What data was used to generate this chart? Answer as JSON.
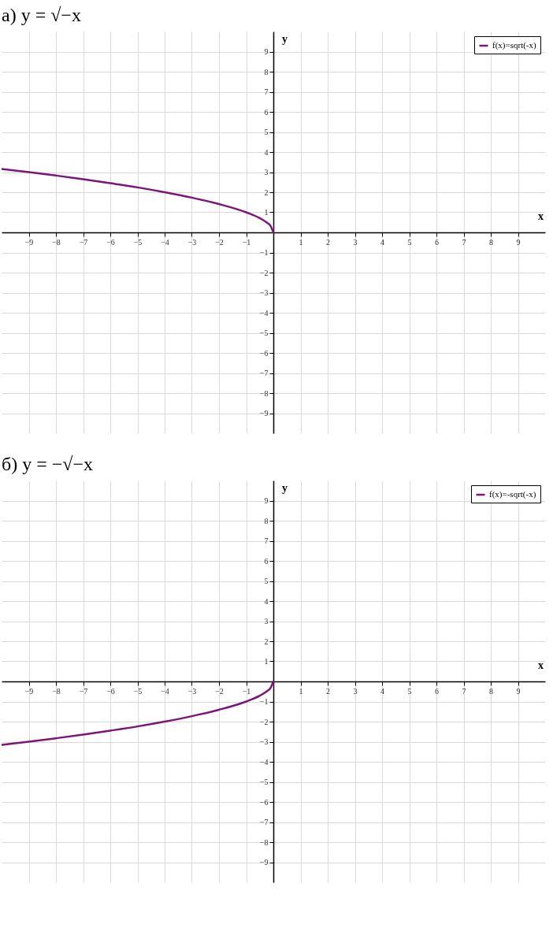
{
  "chart_data": [
    {
      "type": "line",
      "title": "а) y = √−x",
      "xlabel": "x",
      "ylabel": "y",
      "x": [
        -10,
        -9,
        -8,
        -7,
        -6,
        -5,
        -4,
        -3,
        -2,
        -1,
        -0.5,
        -0.25,
        -0.1,
        0
      ],
      "series": [
        {
          "name": "f(x)=sqrt(-x)",
          "color": "#7d1479",
          "values": [
            3.16,
            3,
            2.83,
            2.65,
            2.45,
            2.24,
            2,
            1.73,
            1.41,
            1,
            0.71,
            0.5,
            0.32,
            0
          ]
        }
      ],
      "xlim": [
        -10,
        10
      ],
      "ylim": [
        -10,
        10
      ],
      "xticks": [
        -9,
        -8,
        -7,
        -6,
        -5,
        -4,
        -3,
        -2,
        -1,
        1,
        2,
        3,
        4,
        5,
        6,
        7,
        8,
        9
      ],
      "yticks": [
        -9,
        -8,
        -7,
        -6,
        -5,
        -4,
        -3,
        -2,
        -1,
        1,
        2,
        3,
        4,
        5,
        6,
        7,
        8,
        9
      ],
      "grid": true,
      "legend": "top right"
    },
    {
      "type": "line",
      "title": "б) y = −√−x",
      "xlabel": "x",
      "ylabel": "y",
      "x": [
        -10,
        -9,
        -8,
        -7,
        -6,
        -5,
        -4,
        -3,
        -2,
        -1,
        -0.5,
        -0.25,
        -0.1,
        0
      ],
      "series": [
        {
          "name": "f(x)=-sqrt(-x)",
          "color": "#7d1479",
          "values": [
            -3.16,
            -3,
            -2.83,
            -2.65,
            -2.45,
            -2.24,
            -2,
            -1.73,
            -1.41,
            -1,
            -0.71,
            -0.5,
            -0.32,
            0
          ]
        }
      ],
      "xlim": [
        -10,
        10
      ],
      "ylim": [
        -10,
        10
      ],
      "xticks": [
        -9,
        -8,
        -7,
        -6,
        -5,
        -4,
        -3,
        -2,
        -1,
        1,
        2,
        3,
        4,
        5,
        6,
        7,
        8,
        9
      ],
      "yticks": [
        -9,
        -8,
        -7,
        -6,
        -5,
        -4,
        -3,
        -2,
        -1,
        1,
        2,
        3,
        4,
        5,
        6,
        7,
        8,
        9
      ],
      "grid": true,
      "legend": "top right"
    }
  ]
}
